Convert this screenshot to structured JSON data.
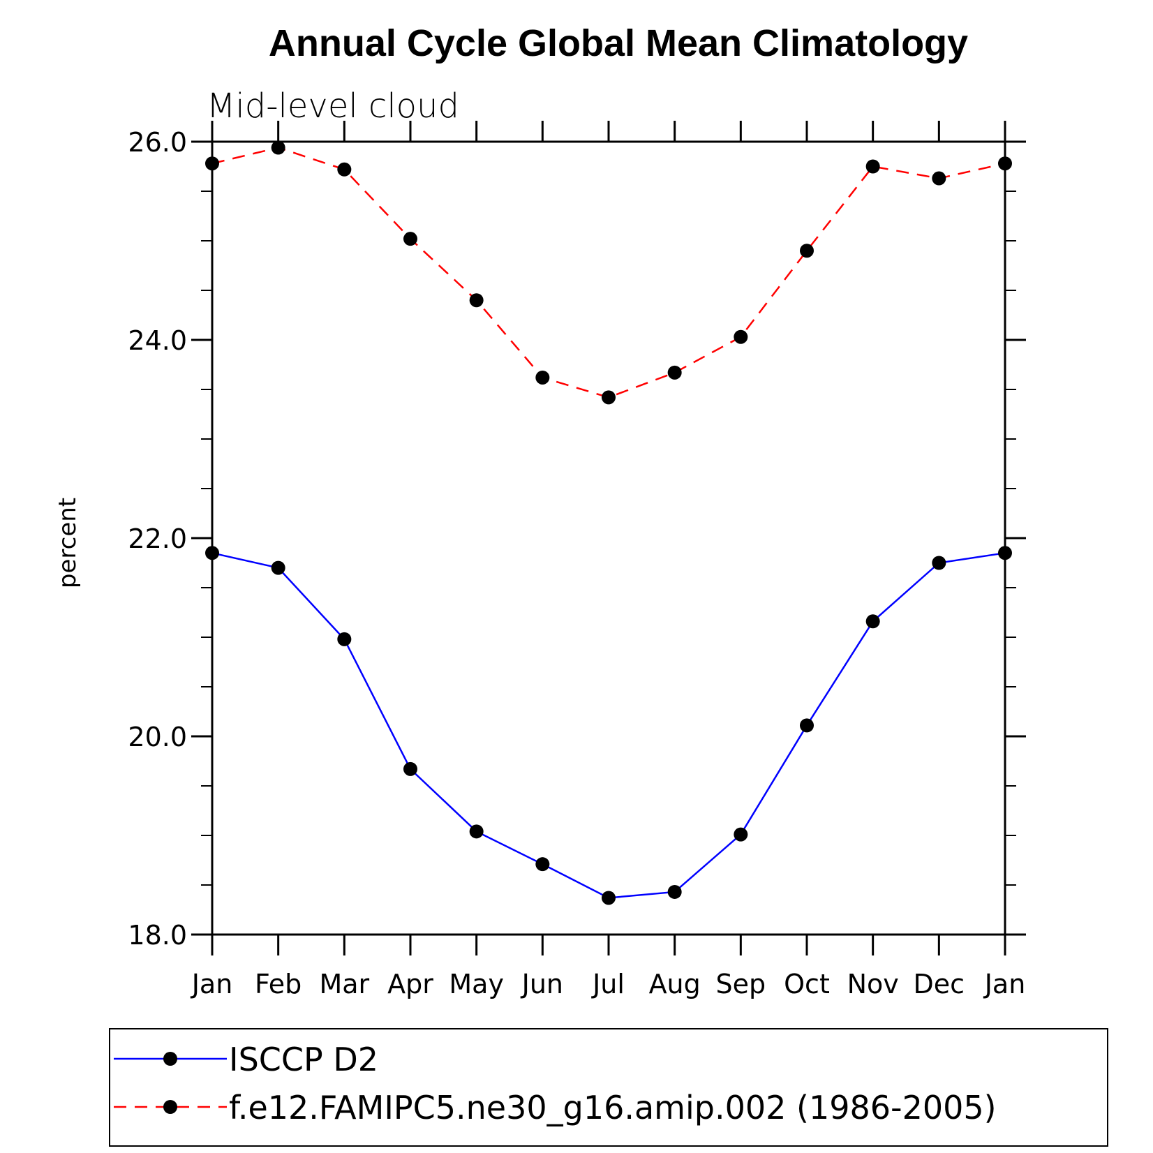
{
  "chart_data": {
    "type": "line",
    "title": "Annual Cycle Global Mean Climatology",
    "subtitle": "Mid-level cloud",
    "xlabel": "",
    "ylabel": "percent",
    "categories": [
      "Jan",
      "Feb",
      "Mar",
      "Apr",
      "May",
      "Jun",
      "Jul",
      "Aug",
      "Sep",
      "Oct",
      "Nov",
      "Dec",
      "Jan"
    ],
    "ylim": [
      18.0,
      26.0
    ],
    "yticks": [
      "18.0",
      "20.0",
      "22.0",
      "24.0",
      "26.0"
    ],
    "ytick_values": [
      18,
      20,
      22,
      24,
      26
    ],
    "grid": false,
    "legend_position": "bottom",
    "series": [
      {
        "name": "ISCCP D2",
        "color": "#0000ff",
        "dash": "solid",
        "values": [
          21.85,
          21.7,
          20.98,
          19.67,
          19.04,
          18.71,
          18.37,
          18.43,
          19.01,
          20.11,
          21.16,
          21.75,
          21.85
        ]
      },
      {
        "name": "f.e12.FAMIPC5.ne30_g16.amip.002 (1986-2005)",
        "color": "#ff0000",
        "dash": "dashed",
        "values": [
          25.78,
          25.94,
          25.72,
          25.02,
          24.4,
          23.62,
          23.42,
          23.67,
          24.03,
          24.9,
          25.75,
          25.63,
          25.78
        ]
      }
    ]
  }
}
